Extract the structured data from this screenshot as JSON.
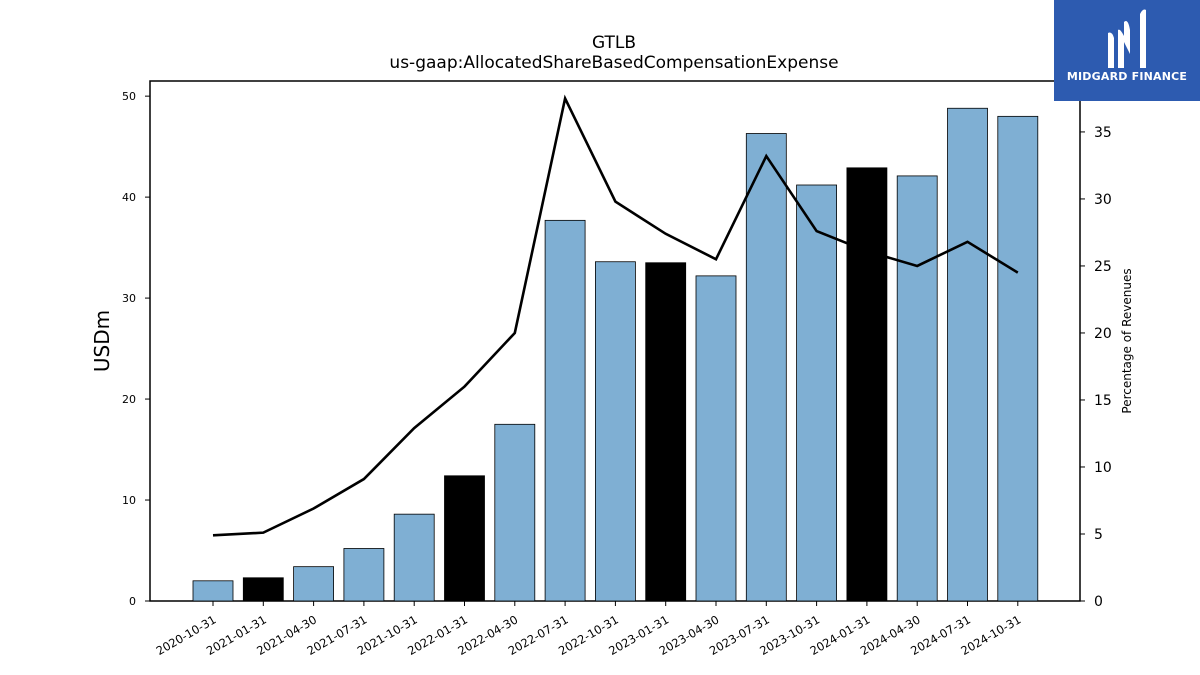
{
  "chart_data": {
    "type": "bar",
    "title": "GTLB",
    "subtitle": "us-gaap:AllocatedShareBasedCompensationExpense",
    "ylabel": "USDm",
    "y2label": "Percentage of Revenues",
    "ylim": [
      0,
      51.5
    ],
    "y2lim": [
      0,
      38.8
    ],
    "yticks": [
      0,
      10,
      20,
      30,
      40,
      50
    ],
    "y2ticks": [
      0,
      5,
      10,
      15,
      20,
      25,
      30,
      35
    ],
    "categories": [
      "2020-10-31",
      "2021-01-31",
      "2021-04-30",
      "2021-07-31",
      "2021-10-31",
      "2022-01-31",
      "2022-04-30",
      "2022-07-31",
      "2022-10-31",
      "2023-01-31",
      "2023-04-30",
      "2023-07-31",
      "2023-10-31",
      "2024-01-31",
      "2024-04-30",
      "2024-07-31",
      "2024-10-31"
    ],
    "series": [
      {
        "axis": "left",
        "kind": "bar",
        "values": [
          2.0,
          2.3,
          3.4,
          5.2,
          8.6,
          12.4,
          17.5,
          37.7,
          33.6,
          33.5,
          32.2,
          46.3,
          41.2,
          42.9,
          42.1,
          48.8,
          48.0
        ],
        "fiscal_q4": [
          false,
          true,
          false,
          false,
          false,
          true,
          false,
          false,
          false,
          true,
          false,
          false,
          false,
          true,
          false,
          false,
          false
        ]
      },
      {
        "axis": "right",
        "kind": "line",
        "values": [
          4.9,
          5.1,
          6.9,
          9.1,
          12.9,
          16.0,
          20.0,
          37.5,
          29.8,
          27.4,
          25.5,
          33.2,
          27.6,
          26.1,
          25.0,
          26.8,
          24.5
        ]
      }
    ],
    "colors": {
      "bar": "#7fafd3",
      "bar_q4": "#000000",
      "line": "#000000"
    },
    "grid": false
  },
  "logo": {
    "text": "MIDGARD FINANCE",
    "color": "#2d5bb0"
  }
}
